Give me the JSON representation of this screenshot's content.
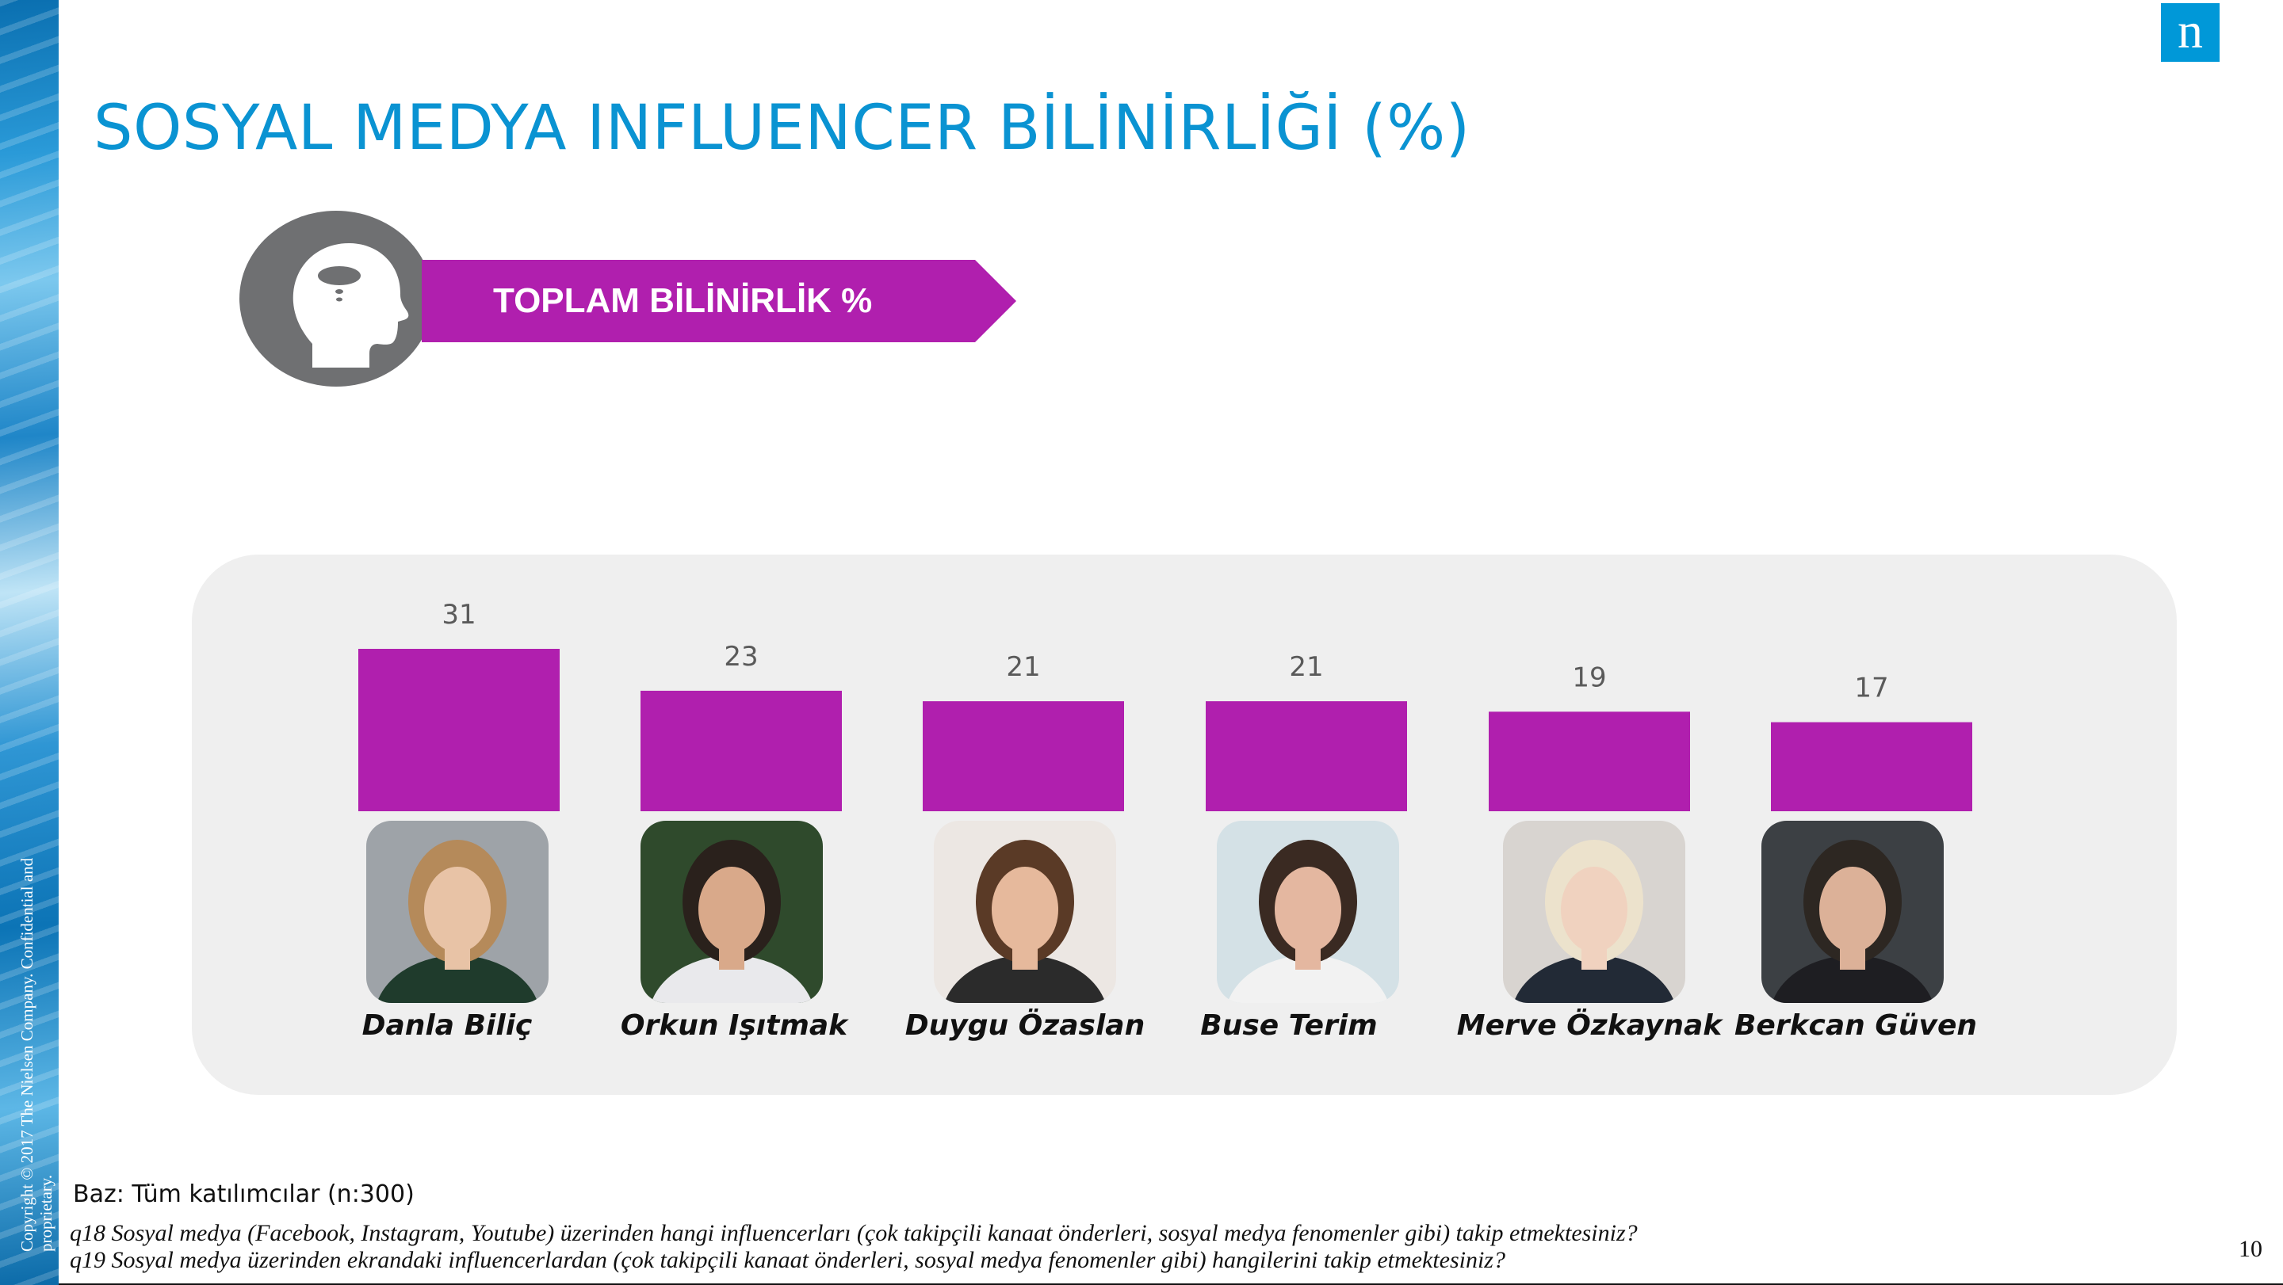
{
  "header": {
    "title": "SOSYAL MEDYA INFLUENCER BİLİNİRLİĞİ (%)",
    "logo_letter": "n"
  },
  "banner": {
    "label": "TOPLAM BİLİNİRLİK %"
  },
  "icons": {
    "head": "head-thought-icon",
    "logo": "nielsen-logo-icon"
  },
  "colors": {
    "accent": "#b01fae",
    "title": "#0a93d2",
    "panel": "#efefef",
    "icon_gray": "#6f7072"
  },
  "chart_data": {
    "type": "bar",
    "categories": [
      "Danla Biliç",
      "Orkun Işıtmak",
      "Duygu Özaslan",
      "Buse Terim",
      "Merve Özkaynak",
      "Berkcan Güven"
    ],
    "values": [
      31,
      23,
      21,
      21,
      19,
      17
    ],
    "value_labels": [
      "31",
      "23",
      "21",
      "21",
      "19",
      "17"
    ],
    "ylim": [
      0,
      31
    ],
    "grid": false,
    "legend": "none"
  },
  "footer": {
    "base": "Baz: Tüm katılımcılar (n:300)",
    "q18": "q18 Sosyal medya (Facebook, Instagram, Youtube) üzerinden hangi influencerları (çok takipçili kanaat önderleri, sosyal medya fenomenler gibi) takip etmektesiniz?",
    "q19": "q19 Sosyal medya üzerinden ekrandaki influencerlardan (çok takipçili kanaat önderleri, sosyal medya fenomenler gibi) hangilerini takip etmektesiniz?",
    "page_number": "10",
    "copyright": "Copyright © 2017 The Nielsen Company. Confidential and proprietary."
  }
}
